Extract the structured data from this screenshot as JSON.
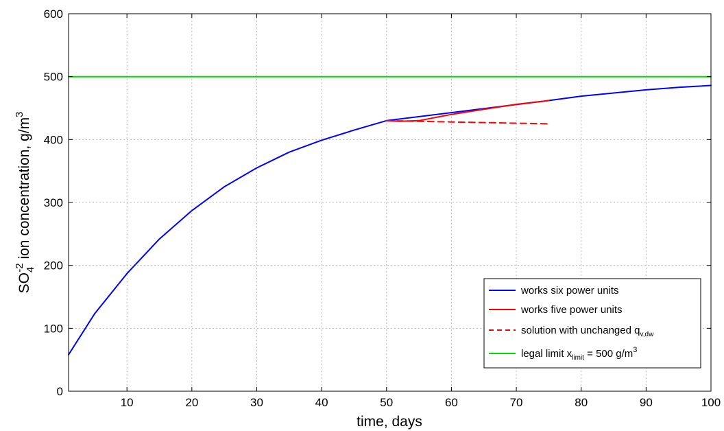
{
  "chart_data": {
    "type": "line",
    "xlabel": "time, days",
    "ylabel": {
      "base": "SO",
      "sub": "4",
      "sup": "-2",
      "rest": " ion concentration, g/m",
      "unit_sup": "3"
    },
    "xlim": [
      1,
      100
    ],
    "ylim": [
      0,
      600
    ],
    "xticks": [
      10,
      20,
      30,
      40,
      50,
      60,
      70,
      80,
      90,
      100
    ],
    "yticks": [
      0,
      100,
      200,
      300,
      400,
      500,
      600
    ],
    "grid": true,
    "legend_position": "bottom-right",
    "series": [
      {
        "name": "works six power units",
        "color": "#0000ff",
        "style": "solid",
        "x": [
          1,
          5,
          10,
          15,
          20,
          25,
          30,
          35,
          40,
          45,
          50,
          75,
          80,
          85,
          90,
          95,
          100
        ],
        "y": [
          58,
          123,
          187,
          242,
          287,
          325,
          355,
          380,
          399,
          415,
          430,
          462,
          469,
          474,
          479,
          483,
          486
        ]
      },
      {
        "name": "works five power units",
        "color": "#ff0000",
        "style": "solid",
        "x": [
          50,
          52,
          55,
          60,
          65,
          70,
          75
        ],
        "y": [
          430,
          429,
          430,
          440,
          448,
          456,
          462
        ]
      },
      {
        "name": "solution with unchanged q",
        "name_sub": "v,dw",
        "color": "#ff0000",
        "style": "dashed",
        "x": [
          50,
          55,
          60,
          65,
          70,
          75
        ],
        "y": [
          430,
          429,
          428,
          427,
          426,
          425
        ]
      },
      {
        "name": "legal limit x",
        "name_sub": "limit",
        "name_rest": " = 500 g/m",
        "name_sup": "3",
        "color": "#00dd00",
        "style": "solid",
        "x": [
          1,
          100
        ],
        "y": [
          500,
          500
        ]
      }
    ]
  }
}
